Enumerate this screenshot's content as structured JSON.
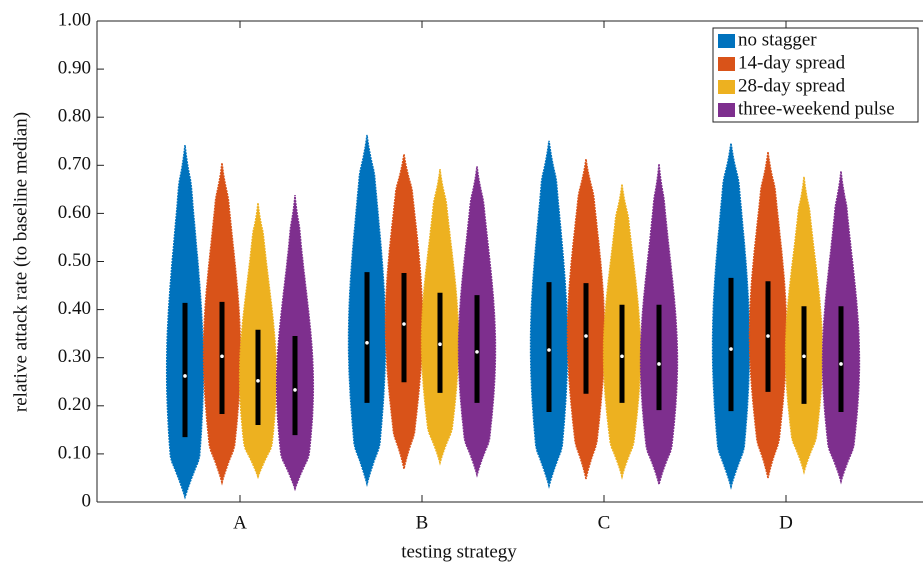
{
  "chart_data": {
    "type": "violin",
    "x_label": "testing strategy",
    "y_label": "relative attack rate (to baseline median)",
    "categories": [
      "A",
      "B",
      "C",
      "D"
    ],
    "ylim": [
      0,
      1
    ],
    "yticks": [
      0,
      {
        "value": 0.1,
        "label": "0.10"
      },
      {
        "value": 0.2,
        "label": "0.20"
      },
      {
        "value": 0.3,
        "label": "0.30"
      },
      {
        "value": 0.4,
        "label": "0.40"
      },
      {
        "value": 0.5,
        "label": "0.50"
      },
      {
        "value": 0.6,
        "label": "0.60"
      },
      {
        "value": 0.7,
        "label": "0.70"
      },
      {
        "value": 0.8,
        "label": "0.80"
      },
      {
        "value": 0.9,
        "label": "0.90"
      },
      {
        "value": 1,
        "label": "1.00"
      }
    ],
    "legend": "northeast",
    "series": [
      {
        "name": "no stagger",
        "color": "#0072BD",
        "min": [
          0.01,
          0.037,
          0.033,
          0.031
        ],
        "q1": [
          0.135,
          0.206,
          0.187,
          0.189
        ],
        "median": [
          0.262,
          0.331,
          0.316,
          0.318
        ],
        "q3": [
          0.414,
          0.478,
          0.457,
          0.466
        ],
        "max": [
          0.742,
          0.763,
          0.751,
          0.746
        ]
      },
      {
        "name": "14-day spread",
        "color": "#D95319",
        "min": [
          0.04,
          0.069,
          0.048,
          0.05
        ],
        "q1": [
          0.183,
          0.249,
          0.225,
          0.229
        ],
        "median": [
          0.303,
          0.37,
          0.345,
          0.345
        ],
        "q3": [
          0.416,
          0.476,
          0.455,
          0.459
        ],
        "max": [
          0.705,
          0.723,
          0.713,
          0.728
        ]
      },
      {
        "name": "28-day spread",
        "color": "#EDB120",
        "min": [
          0.052,
          0.081,
          0.052,
          0.062
        ],
        "q1": [
          0.16,
          0.227,
          0.206,
          0.204
        ],
        "median": [
          0.252,
          0.328,
          0.303,
          0.303
        ],
        "q3": [
          0.358,
          0.435,
          0.41,
          0.407
        ],
        "max": [
          0.622,
          0.692,
          0.661,
          0.676
        ]
      },
      {
        "name": "three-weekend pulse",
        "color": "#7E2F8E",
        "min": [
          0.027,
          0.056,
          0.037,
          0.042
        ],
        "q1": [
          0.139,
          0.206,
          0.191,
          0.187
        ],
        "median": [
          0.233,
          0.312,
          0.287,
          0.287
        ],
        "q3": [
          0.345,
          0.43,
          0.41,
          0.407
        ],
        "max": [
          0.638,
          0.698,
          0.703,
          0.688
        ]
      }
    ]
  }
}
